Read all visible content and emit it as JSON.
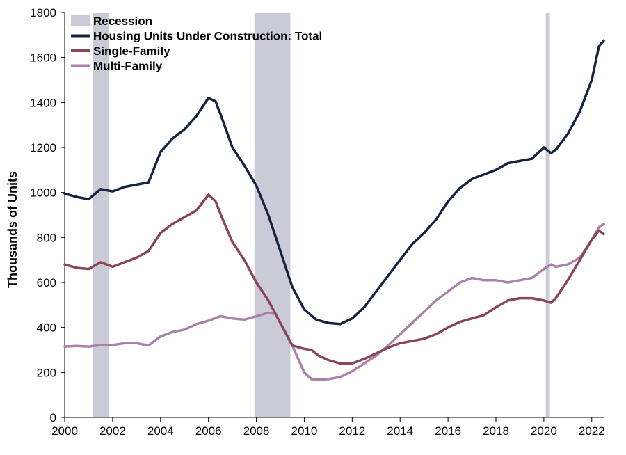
{
  "chart_data": {
    "type": "line",
    "title": "",
    "xlabel": "",
    "ylabel": "Thousands of Units",
    "xlim": [
      2000.0,
      2022.5
    ],
    "ylim": [
      0,
      1800
    ],
    "x_ticks": [
      2000,
      2002,
      2004,
      2006,
      2008,
      2010,
      2012,
      2014,
      2016,
      2018,
      2020,
      2022
    ],
    "y_ticks": [
      0,
      200,
      400,
      600,
      800,
      1000,
      1200,
      1400,
      1600,
      1800
    ],
    "legend_position": "top-left",
    "recession_label": "Recession",
    "recession_color": "#cacbd6",
    "recessions": [
      {
        "start": 2001.17,
        "end": 2001.83
      },
      {
        "start": 2007.92,
        "end": 2009.42
      },
      {
        "start": 2020.08,
        "end": 2020.25
      }
    ],
    "series": [
      {
        "name": "Housing Units Under Construction: Total",
        "color": "#14233f",
        "points": [
          [
            2000.0,
            995
          ],
          [
            2000.5,
            980
          ],
          [
            2001.0,
            970
          ],
          [
            2001.5,
            1015
          ],
          [
            2002.0,
            1005
          ],
          [
            2002.5,
            1025
          ],
          [
            2003.0,
            1035
          ],
          [
            2003.5,
            1045
          ],
          [
            2004.0,
            1180
          ],
          [
            2004.5,
            1240
          ],
          [
            2005.0,
            1280
          ],
          [
            2005.5,
            1340
          ],
          [
            2006.0,
            1420
          ],
          [
            2006.3,
            1405
          ],
          [
            2006.6,
            1320
          ],
          [
            2007.0,
            1200
          ],
          [
            2007.5,
            1120
          ],
          [
            2008.0,
            1030
          ],
          [
            2008.5,
            900
          ],
          [
            2009.0,
            740
          ],
          [
            2009.5,
            580
          ],
          [
            2010.0,
            480
          ],
          [
            2010.5,
            435
          ],
          [
            2011.0,
            420
          ],
          [
            2011.5,
            415
          ],
          [
            2012.0,
            440
          ],
          [
            2012.5,
            490
          ],
          [
            2013.0,
            560
          ],
          [
            2013.5,
            630
          ],
          [
            2014.0,
            700
          ],
          [
            2014.5,
            770
          ],
          [
            2015.0,
            820
          ],
          [
            2015.5,
            880
          ],
          [
            2016.0,
            960
          ],
          [
            2016.5,
            1020
          ],
          [
            2017.0,
            1060
          ],
          [
            2017.5,
            1080
          ],
          [
            2018.0,
            1100
          ],
          [
            2018.5,
            1130
          ],
          [
            2019.0,
            1140
          ],
          [
            2019.5,
            1150
          ],
          [
            2020.0,
            1200
          ],
          [
            2020.3,
            1175
          ],
          [
            2020.5,
            1190
          ],
          [
            2021.0,
            1260
          ],
          [
            2021.5,
            1360
          ],
          [
            2022.0,
            1500
          ],
          [
            2022.3,
            1650
          ],
          [
            2022.5,
            1675
          ]
        ]
      },
      {
        "name": "Single-Family",
        "color": "#8b4558",
        "points": [
          [
            2000.0,
            680
          ],
          [
            2000.5,
            665
          ],
          [
            2001.0,
            660
          ],
          [
            2001.5,
            690
          ],
          [
            2002.0,
            670
          ],
          [
            2002.5,
            690
          ],
          [
            2003.0,
            710
          ],
          [
            2003.5,
            740
          ],
          [
            2004.0,
            820
          ],
          [
            2004.5,
            860
          ],
          [
            2005.0,
            890
          ],
          [
            2005.5,
            920
          ],
          [
            2006.0,
            990
          ],
          [
            2006.3,
            960
          ],
          [
            2006.6,
            880
          ],
          [
            2007.0,
            780
          ],
          [
            2007.5,
            700
          ],
          [
            2008.0,
            600
          ],
          [
            2008.5,
            520
          ],
          [
            2009.0,
            420
          ],
          [
            2009.5,
            320
          ],
          [
            2010.0,
            305
          ],
          [
            2010.3,
            300
          ],
          [
            2010.6,
            275
          ],
          [
            2011.0,
            255
          ],
          [
            2011.5,
            240
          ],
          [
            2012.0,
            240
          ],
          [
            2012.5,
            260
          ],
          [
            2013.0,
            285
          ],
          [
            2013.5,
            310
          ],
          [
            2014.0,
            330
          ],
          [
            2014.5,
            340
          ],
          [
            2015.0,
            350
          ],
          [
            2015.5,
            370
          ],
          [
            2016.0,
            400
          ],
          [
            2016.5,
            425
          ],
          [
            2017.0,
            440
          ],
          [
            2017.5,
            455
          ],
          [
            2018.0,
            490
          ],
          [
            2018.5,
            520
          ],
          [
            2019.0,
            530
          ],
          [
            2019.5,
            530
          ],
          [
            2020.0,
            520
          ],
          [
            2020.3,
            510
          ],
          [
            2020.5,
            530
          ],
          [
            2021.0,
            610
          ],
          [
            2021.5,
            700
          ],
          [
            2022.0,
            790
          ],
          [
            2022.3,
            830
          ],
          [
            2022.5,
            815
          ]
        ]
      },
      {
        "name": "Multi-Family",
        "color": "#a882a8",
        "points": [
          [
            2000.0,
            315
          ],
          [
            2000.5,
            318
          ],
          [
            2001.0,
            315
          ],
          [
            2001.5,
            322
          ],
          [
            2002.0,
            322
          ],
          [
            2002.5,
            330
          ],
          [
            2003.0,
            330
          ],
          [
            2003.5,
            320
          ],
          [
            2004.0,
            360
          ],
          [
            2004.5,
            380
          ],
          [
            2005.0,
            390
          ],
          [
            2005.5,
            415
          ],
          [
            2006.0,
            430
          ],
          [
            2006.5,
            450
          ],
          [
            2007.0,
            440
          ],
          [
            2007.5,
            435
          ],
          [
            2008.0,
            450
          ],
          [
            2008.5,
            465
          ],
          [
            2008.8,
            460
          ],
          [
            2009.0,
            420
          ],
          [
            2009.5,
            320
          ],
          [
            2010.0,
            200
          ],
          [
            2010.3,
            170
          ],
          [
            2010.6,
            168
          ],
          [
            2011.0,
            170
          ],
          [
            2011.5,
            180
          ],
          [
            2012.0,
            205
          ],
          [
            2012.5,
            240
          ],
          [
            2013.0,
            275
          ],
          [
            2013.5,
            320
          ],
          [
            2014.0,
            370
          ],
          [
            2014.5,
            420
          ],
          [
            2015.0,
            470
          ],
          [
            2015.5,
            520
          ],
          [
            2016.0,
            560
          ],
          [
            2016.5,
            600
          ],
          [
            2017.0,
            620
          ],
          [
            2017.5,
            610
          ],
          [
            2018.0,
            610
          ],
          [
            2018.5,
            600
          ],
          [
            2019.0,
            610
          ],
          [
            2019.5,
            620
          ],
          [
            2020.0,
            660
          ],
          [
            2020.3,
            680
          ],
          [
            2020.5,
            670
          ],
          [
            2021.0,
            680
          ],
          [
            2021.5,
            710
          ],
          [
            2022.0,
            790
          ],
          [
            2022.3,
            845
          ],
          [
            2022.5,
            860
          ]
        ]
      }
    ]
  }
}
